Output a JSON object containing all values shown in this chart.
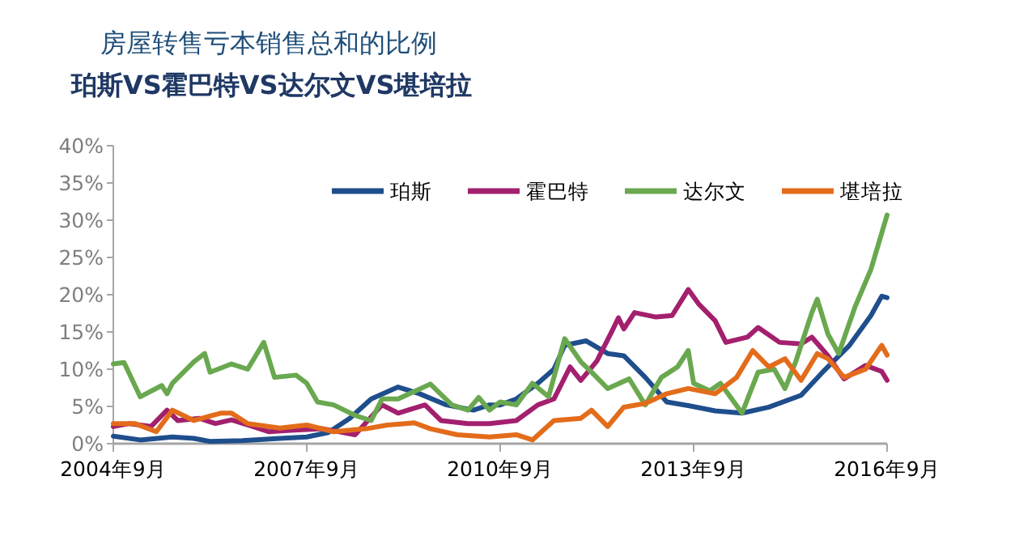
{
  "chart_data": {
    "type": "line",
    "title": "房屋转售亏本销售总和的比例",
    "subtitle": "珀斯VS霍巴特VS达尔文VS堪培拉",
    "xlim": [
      "2004-09",
      "2016-09"
    ],
    "xticks": [
      {
        "value": "2004-09",
        "label": "2004年9月"
      },
      {
        "value": "2007-09",
        "label": "2007年9月"
      },
      {
        "value": "2010-09",
        "label": "2010年9月"
      },
      {
        "value": "2013-09",
        "label": "2013年9月"
      },
      {
        "value": "2016-09",
        "label": "2016年9月"
      }
    ],
    "ylim": [
      0,
      40
    ],
    "yticks": [
      {
        "value": 0,
        "label": "0%"
      },
      {
        "value": 5,
        "label": "5%"
      },
      {
        "value": 10,
        "label": "10%"
      },
      {
        "value": 15,
        "label": "15%"
      },
      {
        "value": 20,
        "label": "20%"
      },
      {
        "value": 25,
        "label": "25%"
      },
      {
        "value": 30,
        "label": "30%"
      },
      {
        "value": 35,
        "label": "35%"
      },
      {
        "value": 40,
        "label": "40%"
      }
    ],
    "grid": false,
    "legend": "top",
    "marker": "none",
    "line_style": "solid",
    "series": [
      {
        "name": "珀斯",
        "color": "#1f4e8c",
        "x": [
          "2004-09",
          "2005-02",
          "2005-08",
          "2005-12",
          "2006-03",
          "2006-09",
          "2007-04",
          "2007-09",
          "2008-01",
          "2008-05",
          "2008-09",
          "2009-02",
          "2009-06",
          "2009-11",
          "2010-04",
          "2010-07",
          "2010-09",
          "2010-12",
          "2011-04",
          "2011-07",
          "2011-09",
          "2012-01",
          "2012-05",
          "2012-08",
          "2012-12",
          "2013-04",
          "2013-08",
          "2014-01",
          "2014-06",
          "2014-11",
          "2015-05",
          "2015-09",
          "2016-02",
          "2016-06",
          "2016-08",
          "2016-09"
        ],
        "values": [
          1.0,
          0.5,
          0.9,
          0.7,
          0.3,
          0.4,
          0.7,
          0.9,
          1.5,
          3.4,
          6.0,
          7.6,
          6.7,
          5.2,
          4.5,
          5.2,
          5.2,
          6.0,
          8.1,
          10.0,
          13.2,
          13.8,
          12.1,
          11.8,
          8.9,
          5.6,
          5.1,
          4.4,
          4.1,
          4.9,
          6.5,
          9.6,
          13.2,
          17.2,
          19.8,
          19.6
        ]
      },
      {
        "name": "霍巴特",
        "color": "#a3206e",
        "x": [
          "2004-09",
          "2004-12",
          "2005-04",
          "2005-07",
          "2005-09",
          "2006-01",
          "2006-04",
          "2006-07",
          "2006-11",
          "2007-02",
          "2007-06",
          "2007-12",
          "2008-06",
          "2008-11",
          "2009-02",
          "2009-07",
          "2009-10",
          "2010-03",
          "2010-07",
          "2010-12",
          "2011-04",
          "2011-07",
          "2011-10",
          "2011-12",
          "2012-03",
          "2012-06",
          "2012-07",
          "2012-08",
          "2012-10",
          "2013-02",
          "2013-05",
          "2013-08",
          "2013-10",
          "2014-01",
          "2014-03",
          "2014-07",
          "2014-09",
          "2015-01",
          "2015-05",
          "2015-07",
          "2015-10",
          "2016-01",
          "2016-05",
          "2016-08",
          "2016-09"
        ],
        "values": [
          2.3,
          2.7,
          2.3,
          4.5,
          3.1,
          3.4,
          2.7,
          3.2,
          2.3,
          1.6,
          1.8,
          2.0,
          1.2,
          5.2,
          4.1,
          5.2,
          3.1,
          2.7,
          2.7,
          3.1,
          5.2,
          6.0,
          10.3,
          8.5,
          11.1,
          15.4,
          16.9,
          15.4,
          17.6,
          17.0,
          17.2,
          20.7,
          18.7,
          16.5,
          13.6,
          14.3,
          15.6,
          13.6,
          13.4,
          14.3,
          11.8,
          8.7,
          10.5,
          9.7,
          8.5
        ]
      },
      {
        "name": "达尔文",
        "color": "#6aa84f",
        "x": [
          "2004-09",
          "2004-11",
          "2005-02",
          "2005-06",
          "2005-07",
          "2005-08",
          "2005-12",
          "2006-02",
          "2006-03",
          "2006-07",
          "2006-10",
          "2007-01",
          "2007-03",
          "2007-07",
          "2007-09",
          "2007-11",
          "2008-02",
          "2008-06",
          "2008-09",
          "2008-11",
          "2009-02",
          "2009-08",
          "2009-12",
          "2010-03",
          "2010-05",
          "2010-07",
          "2010-09",
          "2010-12",
          "2011-03",
          "2011-06",
          "2011-09",
          "2011-12",
          "2012-02",
          "2012-05",
          "2012-09",
          "2012-12",
          "2013-03",
          "2013-06",
          "2013-08",
          "2013-09",
          "2013-12",
          "2014-02",
          "2014-06",
          "2014-09",
          "2014-12",
          "2015-02",
          "2015-04",
          "2015-07",
          "2015-08",
          "2015-10",
          "2015-12",
          "2016-03",
          "2016-06",
          "2016-09"
        ],
        "values": [
          10.7,
          10.9,
          6.3,
          7.8,
          6.7,
          8.1,
          11.0,
          12.1,
          9.6,
          10.7,
          10.0,
          13.6,
          8.9,
          9.2,
          8.1,
          5.6,
          5.2,
          3.8,
          3.1,
          6.0,
          6.0,
          8.0,
          5.2,
          4.5,
          6.2,
          4.5,
          5.6,
          5.2,
          8.1,
          6.3,
          14.1,
          11.0,
          9.6,
          7.4,
          8.7,
          5.2,
          8.9,
          10.3,
          12.5,
          8.1,
          7.1,
          8.1,
          4.1,
          9.6,
          10.0,
          7.4,
          11.0,
          17.6,
          19.4,
          14.7,
          12.1,
          18.3,
          23.4,
          30.7
        ]
      },
      {
        "name": "堪培拉",
        "color": "#e36c1b",
        "x": [
          "2004-09",
          "2005-01",
          "2005-05",
          "2005-08",
          "2005-12",
          "2006-05",
          "2006-07",
          "2006-10",
          "2007-04",
          "2007-09",
          "2008-02",
          "2008-08",
          "2008-12",
          "2009-05",
          "2009-08",
          "2010-01",
          "2010-07",
          "2010-12",
          "2011-03",
          "2011-07",
          "2011-12",
          "2012-02",
          "2012-05",
          "2012-08",
          "2012-12",
          "2013-04",
          "2013-08",
          "2014-01",
          "2014-05",
          "2014-08",
          "2014-11",
          "2015-02",
          "2015-05",
          "2015-08",
          "2015-10",
          "2016-01",
          "2016-05",
          "2016-08",
          "2016-09"
        ],
        "values": [
          2.7,
          2.7,
          1.6,
          4.5,
          3.1,
          4.1,
          4.1,
          2.7,
          2.1,
          2.5,
          1.6,
          2.0,
          2.5,
          2.8,
          2.0,
          1.2,
          0.9,
          1.2,
          0.5,
          3.1,
          3.4,
          4.5,
          2.3,
          4.9,
          5.4,
          6.7,
          7.4,
          6.7,
          8.9,
          12.5,
          10.3,
          11.4,
          8.5,
          12.1,
          11.4,
          8.9,
          10.0,
          13.2,
          11.9
        ]
      }
    ]
  }
}
